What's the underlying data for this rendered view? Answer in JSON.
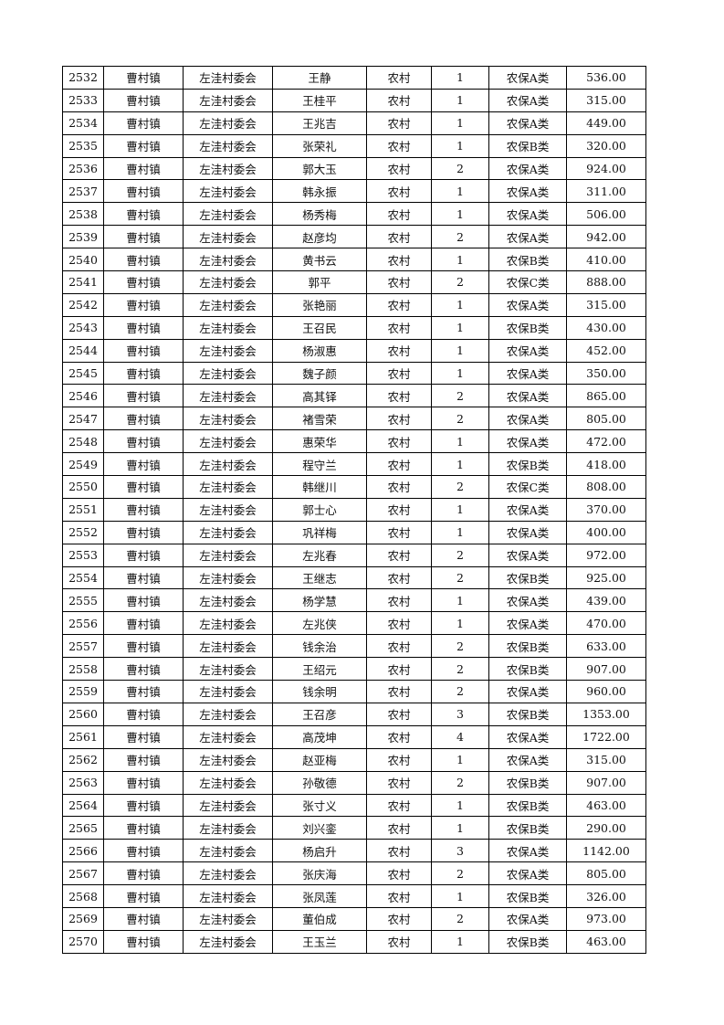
{
  "rows": [
    [
      "2532",
      "曹村镇",
      "左洼村委会",
      "王静",
      "农村",
      "1",
      "农保A类",
      "536.00"
    ],
    [
      "2533",
      "曹村镇",
      "左洼村委会",
      "王桂平",
      "农村",
      "1",
      "农保A类",
      "315.00"
    ],
    [
      "2534",
      "曹村镇",
      "左洼村委会",
      "王兆吉",
      "农村",
      "1",
      "农保A类",
      "449.00"
    ],
    [
      "2535",
      "曹村镇",
      "左洼村委会",
      "张荣礼",
      "农村",
      "1",
      "农保B类",
      "320.00"
    ],
    [
      "2536",
      "曹村镇",
      "左洼村委会",
      "郭大玉",
      "农村",
      "2",
      "农保A类",
      "924.00"
    ],
    [
      "2537",
      "曹村镇",
      "左洼村委会",
      "韩永振",
      "农村",
      "1",
      "农保A类",
      "311.00"
    ],
    [
      "2538",
      "曹村镇",
      "左洼村委会",
      "杨秀梅",
      "农村",
      "1",
      "农保A类",
      "506.00"
    ],
    [
      "2539",
      "曹村镇",
      "左洼村委会",
      "赵彦均",
      "农村",
      "2",
      "农保A类",
      "942.00"
    ],
    [
      "2540",
      "曹村镇",
      "左洼村委会",
      "黄书云",
      "农村",
      "1",
      "农保B类",
      "410.00"
    ],
    [
      "2541",
      "曹村镇",
      "左洼村委会",
      "郭平",
      "农村",
      "2",
      "农保C类",
      "888.00"
    ],
    [
      "2542",
      "曹村镇",
      "左洼村委会",
      "张艳丽",
      "农村",
      "1",
      "农保A类",
      "315.00"
    ],
    [
      "2543",
      "曹村镇",
      "左洼村委会",
      "王召民",
      "农村",
      "1",
      "农保B类",
      "430.00"
    ],
    [
      "2544",
      "曹村镇",
      "左洼村委会",
      "杨淑惠",
      "农村",
      "1",
      "农保A类",
      "452.00"
    ],
    [
      "2545",
      "曹村镇",
      "左洼村委会",
      "魏子颜",
      "农村",
      "1",
      "农保A类",
      "350.00"
    ],
    [
      "2546",
      "曹村镇",
      "左洼村委会",
      "高其铎",
      "农村",
      "2",
      "农保A类",
      "865.00"
    ],
    [
      "2547",
      "曹村镇",
      "左洼村委会",
      "褚雪荣",
      "农村",
      "2",
      "农保A类",
      "805.00"
    ],
    [
      "2548",
      "曹村镇",
      "左洼村委会",
      "惠荣华",
      "农村",
      "1",
      "农保A类",
      "472.00"
    ],
    [
      "2549",
      "曹村镇",
      "左洼村委会",
      "程守兰",
      "农村",
      "1",
      "农保B类",
      "418.00"
    ],
    [
      "2550",
      "曹村镇",
      "左洼村委会",
      "韩继川",
      "农村",
      "2",
      "农保C类",
      "808.00"
    ],
    [
      "2551",
      "曹村镇",
      "左洼村委会",
      "郭士心",
      "农村",
      "1",
      "农保A类",
      "370.00"
    ],
    [
      "2552",
      "曹村镇",
      "左洼村委会",
      "巩祥梅",
      "农村",
      "1",
      "农保A类",
      "400.00"
    ],
    [
      "2553",
      "曹村镇",
      "左洼村委会",
      "左兆春",
      "农村",
      "2",
      "农保A类",
      "972.00"
    ],
    [
      "2554",
      "曹村镇",
      "左洼村委会",
      "王继志",
      "农村",
      "2",
      "农保B类",
      "925.00"
    ],
    [
      "2555",
      "曹村镇",
      "左洼村委会",
      "杨学慧",
      "农村",
      "1",
      "农保A类",
      "439.00"
    ],
    [
      "2556",
      "曹村镇",
      "左洼村委会",
      "左兆侠",
      "农村",
      "1",
      "农保A类",
      "470.00"
    ],
    [
      "2557",
      "曹村镇",
      "左洼村委会",
      "钱余治",
      "农村",
      "2",
      "农保B类",
      "633.00"
    ],
    [
      "2558",
      "曹村镇",
      "左洼村委会",
      "王绍元",
      "农村",
      "2",
      "农保B类",
      "907.00"
    ],
    [
      "2559",
      "曹村镇",
      "左洼村委会",
      "钱余明",
      "农村",
      "2",
      "农保A类",
      "960.00"
    ],
    [
      "2560",
      "曹村镇",
      "左洼村委会",
      "王召彦",
      "农村",
      "3",
      "农保B类",
      "1353.00"
    ],
    [
      "2561",
      "曹村镇",
      "左洼村委会",
      "高茂坤",
      "农村",
      "4",
      "农保A类",
      "1722.00"
    ],
    [
      "2562",
      "曹村镇",
      "左洼村委会",
      "赵亚梅",
      "农村",
      "1",
      "农保A类",
      "315.00"
    ],
    [
      "2563",
      "曹村镇",
      "左洼村委会",
      "孙敬德",
      "农村",
      "2",
      "农保B类",
      "907.00"
    ],
    [
      "2564",
      "曹村镇",
      "左洼村委会",
      "张寸义",
      "农村",
      "1",
      "农保B类",
      "463.00"
    ],
    [
      "2565",
      "曹村镇",
      "左洼村委会",
      "刘兴銮",
      "农村",
      "1",
      "农保B类",
      "290.00"
    ],
    [
      "2566",
      "曹村镇",
      "左洼村委会",
      "杨启升",
      "农村",
      "3",
      "农保A类",
      "1142.00"
    ],
    [
      "2567",
      "曹村镇",
      "左洼村委会",
      "张庆海",
      "农村",
      "2",
      "农保A类",
      "805.00"
    ],
    [
      "2568",
      "曹村镇",
      "左洼村委会",
      "张凤莲",
      "农村",
      "1",
      "农保B类",
      "326.00"
    ],
    [
      "2569",
      "曹村镇",
      "左洼村委会",
      "董伯成",
      "农村",
      "2",
      "农保A类",
      "973.00"
    ],
    [
      "2570",
      "曹村镇",
      "左洼村委会",
      "王玉兰",
      "农村",
      "1",
      "农保B类",
      "463.00"
    ]
  ]
}
